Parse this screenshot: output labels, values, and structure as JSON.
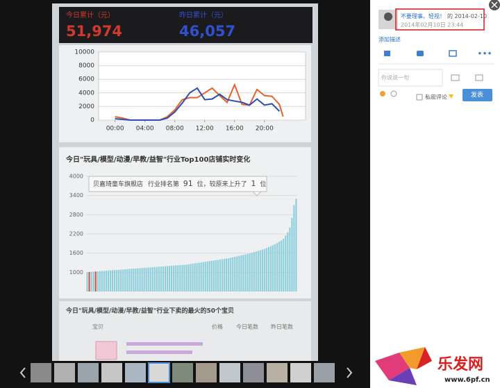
{
  "photo": {
    "today_label": "今日累计（元）",
    "today_value": "51,974",
    "yesterday_label": "昨日累计（元）",
    "yesterday_value": "46,057",
    "line_chart": {
      "type": "line",
      "xlim": [
        -2.2,
        25.5
      ],
      "xticks": [
        {
          "value": 0,
          "label": "00:00"
        },
        {
          "value": 4,
          "label": "04:00"
        },
        {
          "value": 8,
          "label": "08:00"
        },
        {
          "value": 12,
          "label": "12:00"
        },
        {
          "value": 16,
          "label": "16:00"
        },
        {
          "value": 20,
          "label": "20:00"
        }
      ],
      "ylim": [
        0,
        10000
      ],
      "yticks": [
        0,
        2000,
        4000,
        6000,
        8000,
        10000
      ],
      "grid": true,
      "series": [
        {
          "color": "#e8612c",
          "x": [
            0,
            1,
            2,
            3,
            4,
            5,
            6,
            7,
            8,
            9,
            10,
            11,
            12,
            13,
            14,
            15,
            16,
            17,
            18,
            19,
            20,
            21,
            22,
            22.5
          ],
          "values": [
            500,
            300,
            0,
            0,
            0,
            0,
            0,
            500,
            1500,
            3000,
            3300,
            3300,
            4000,
            4700,
            3600,
            2600,
            5200,
            2300,
            2200,
            4500,
            3600,
            3500,
            2300,
            500
          ]
        },
        {
          "color": "#2a4fb0",
          "x": [
            0,
            1,
            2,
            3,
            4,
            5,
            6,
            7,
            8,
            9,
            10,
            11,
            12,
            13,
            14,
            15,
            16,
            17,
            18,
            19,
            20,
            21,
            22
          ],
          "values": [
            200,
            100,
            0,
            0,
            0,
            0,
            0,
            300,
            1200,
            2500,
            4000,
            4700,
            3000,
            3100,
            3800,
            3000,
            2800,
            2600,
            2200,
            3100,
            2200,
            2400,
            1300
          ]
        }
      ]
    },
    "bar_chart": {
      "type": "bar",
      "title": "今日\"玩具/模型/动漫/早教/益智\"行业Top100店铺实时变化",
      "ylim": [
        400,
        4000
      ],
      "yticks": [
        1000,
        1600,
        2200,
        2800,
        3400,
        4000
      ],
      "grid": true,
      "color": "#8ccfdc",
      "highlight_color": "#e0503a",
      "highlight_index": [
        1,
        4
      ],
      "values": [
        1000,
        1010,
        1015,
        1020,
        1025,
        1030,
        1035,
        1040,
        1045,
        1050,
        1055,
        1060,
        1065,
        1070,
        1075,
        1080,
        1085,
        1090,
        1095,
        1100,
        1105,
        1110,
        1115,
        1120,
        1125,
        1130,
        1135,
        1140,
        1145,
        1150,
        1155,
        1160,
        1165,
        1170,
        1175,
        1180,
        1185,
        1190,
        1195,
        1200,
        1205,
        1210,
        1215,
        1220,
        1225,
        1230,
        1235,
        1240,
        1250,
        1260,
        1270,
        1280,
        1290,
        1300,
        1310,
        1320,
        1330,
        1340,
        1350,
        1360,
        1370,
        1380,
        1390,
        1400,
        1410,
        1420,
        1430,
        1440,
        1455,
        1470,
        1485,
        1500,
        1515,
        1530,
        1545,
        1560,
        1575,
        1590,
        1610,
        1630,
        1650,
        1670,
        1690,
        1710,
        1730,
        1760,
        1790,
        1820,
        1850,
        1880,
        1920,
        1960,
        2000,
        2050,
        2150,
        2250,
        2400,
        2700,
        3100,
        3300
      ]
    },
    "tooltip": {
      "shop": "贝嘉琦童车旗舰店",
      "rank_prefix": "行业排名第",
      "rank": 91,
      "rank_suffix": "位，较原来上升了",
      "change": 1,
      "change_suffix": "位"
    },
    "table": {
      "title": "今日\"玩具/模型/动漫/早教/益智\"行业下卖的最火的50个宝贝",
      "headers": [
        "宝贝",
        "价格",
        "今日笔数",
        "昨日笔数"
      ]
    }
  },
  "panel": {
    "author": "不要理事。轻视！",
    "date_link": "的 2014-02-10",
    "timestamp": "2014年02月10日 23:44",
    "add_description": "添加描述",
    "comment_placeholder": "你说说一句",
    "private_comment": "私密评论",
    "submit": "发表"
  },
  "logo": {
    "name": "乐发网",
    "url": "www.6pf.cn"
  }
}
